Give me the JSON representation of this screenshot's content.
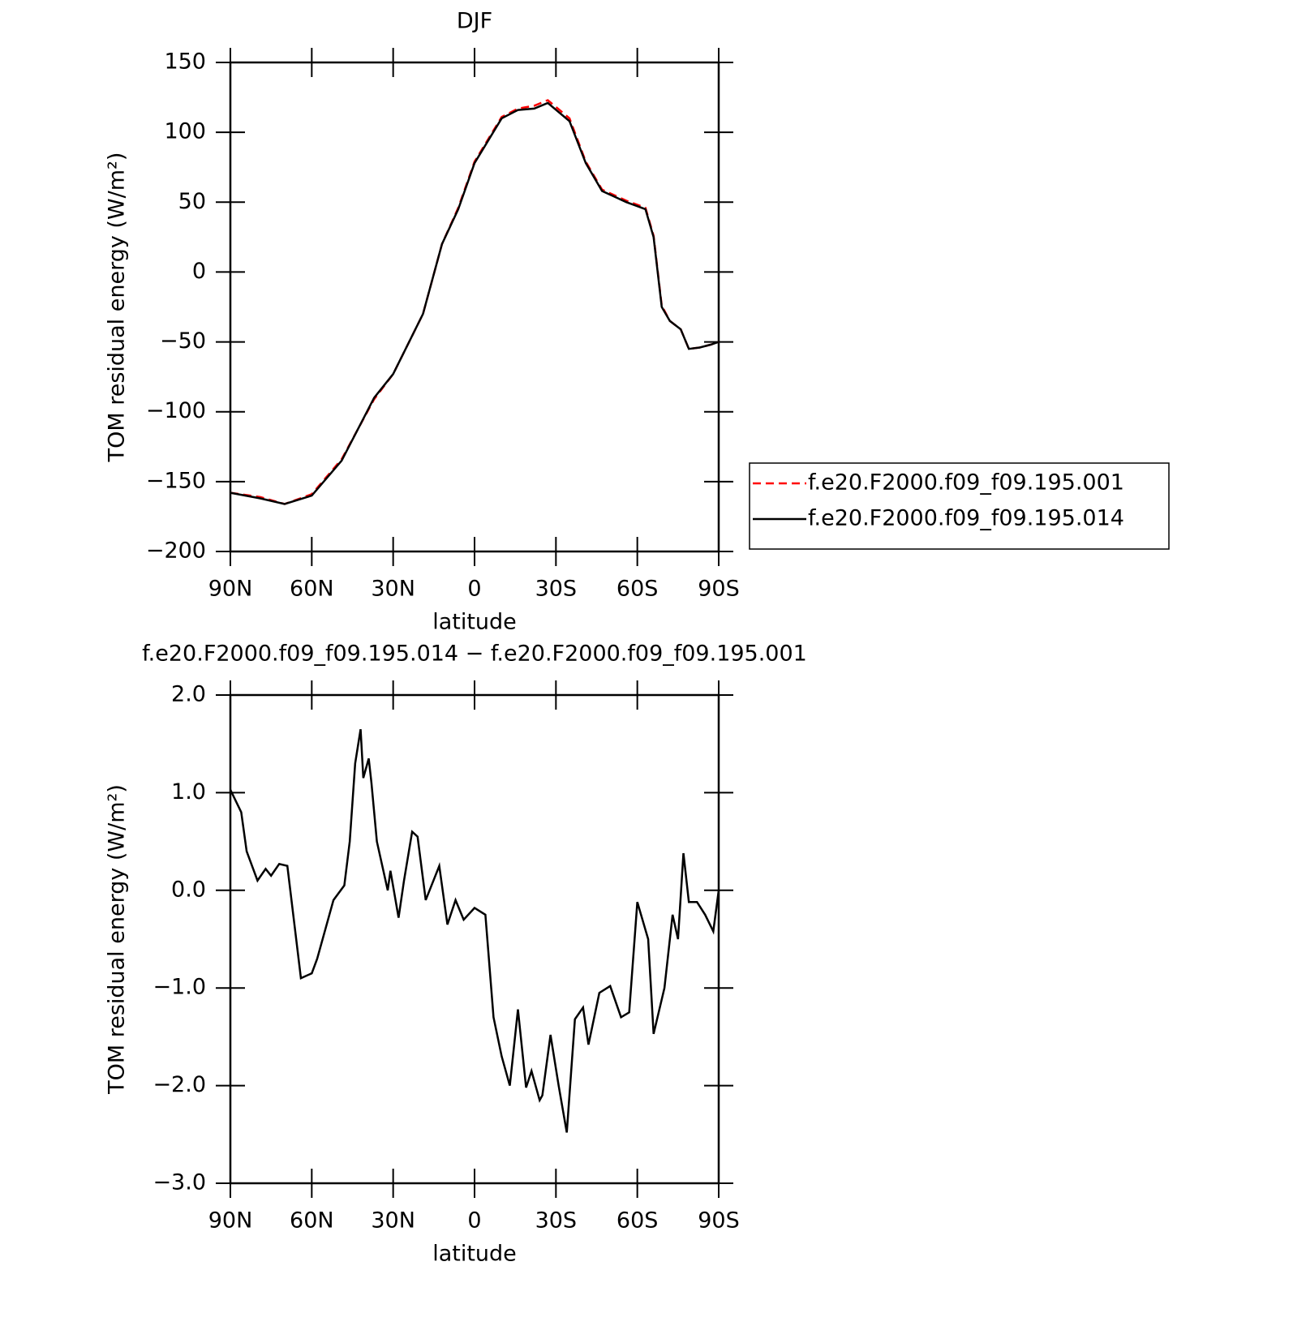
{
  "chart_data": [
    {
      "type": "line",
      "title": "DJF",
      "xlabel": "latitude",
      "ylabel": "TOM residual energy (W/m²)",
      "x": [
        90,
        79,
        70,
        60,
        49,
        37,
        30,
        19,
        12,
        6,
        0,
        -10,
        -16,
        -22,
        -27,
        -35,
        -41,
        -47,
        -56,
        -63,
        -66,
        -69,
        -72,
        -76,
        -79,
        -83,
        -87,
        -90
      ],
      "series": [
        {
          "name": "f.e20.F2000.f09_f09.195.001",
          "color": "#ff0000",
          "linestyle": "dashed",
          "values": [
            -158,
            -161,
            -166,
            -159,
            -134,
            -91,
            -73,
            -30,
            20,
            46,
            79,
            111,
            117,
            119,
            123,
            110,
            79,
            59,
            51,
            46,
            26,
            -24,
            -35,
            -41,
            -55,
            -54,
            -52,
            -50
          ]
        },
        {
          "name": "f.e20.F2000.f09_f09.195.014",
          "color": "#000000",
          "linestyle": "solid",
          "values": [
            -158,
            -162,
            -166,
            -160,
            -135,
            -90,
            -73,
            -30,
            20,
            45,
            78,
            110,
            116,
            117,
            121,
            108,
            78,
            58,
            50,
            45,
            25,
            -25,
            -35,
            -41,
            -55,
            -54,
            -52,
            -50
          ]
        }
      ],
      "xlim": [
        90,
        -90
      ],
      "xticks": [
        {
          "value": 90,
          "label": "90N"
        },
        {
          "value": 60,
          "label": "60N"
        },
        {
          "value": 30,
          "label": "30N"
        },
        0,
        {
          "value": -30,
          "label": "30S"
        },
        {
          "value": -60,
          "label": "60S"
        },
        {
          "value": -90,
          "label": "90S"
        }
      ],
      "ylim": [
        -200,
        150
      ],
      "yticks": [
        {
          "value": -200,
          "label": "−200"
        },
        {
          "value": -150,
          "label": "−150"
        },
        {
          "value": -100,
          "label": "−100"
        },
        {
          "value": -50,
          "label": "−50"
        },
        0,
        50,
        100,
        150
      ],
      "legend": "right"
    },
    {
      "type": "line",
      "title": "f.e20.F2000.f09_f09.195.014 − f.e20.F2000.f09_f09.195.001",
      "xlabel": "latitude",
      "ylabel": "TOM residual energy (W/m²)",
      "x": [
        90,
        86,
        84,
        80,
        77,
        75,
        72,
        69,
        64,
        60,
        58,
        52,
        48,
        46,
        44,
        42,
        41,
        39,
        38,
        36,
        32,
        31,
        28,
        26,
        23,
        21,
        18,
        13,
        10,
        7,
        4,
        0,
        -4,
        -7,
        -10,
        -13,
        -16,
        -19,
        -21,
        -24,
        -25,
        -28,
        -31,
        -34,
        -37,
        -40,
        -42,
        -46,
        -50,
        -54,
        -57,
        -60,
        -64,
        -66,
        -70,
        -73,
        -75,
        -77,
        -79,
        -82,
        -85,
        -88,
        -90
      ],
      "series": [
        {
          "name": null,
          "color": "#000000",
          "linestyle": "solid",
          "values": [
            1.03,
            0.8,
            0.4,
            0.1,
            0.22,
            0.15,
            0.27,
            0.25,
            -0.9,
            -0.85,
            -0.7,
            -0.1,
            0.05,
            0.5,
            1.3,
            1.65,
            1.15,
            1.35,
            1.1,
            0.5,
            0.0,
            0.2,
            -0.28,
            0.1,
            0.6,
            0.55,
            -0.1,
            0.25,
            -0.35,
            -0.1,
            -0.3,
            -0.18,
            -0.25,
            -1.3,
            -1.7,
            -2.0,
            -1.22,
            -2.02,
            -1.85,
            -2.15,
            -2.1,
            -1.48,
            -2.0,
            -2.48,
            -1.32,
            -1.2,
            -1.58,
            -1.05,
            -0.98,
            -1.3,
            -1.25,
            -0.12,
            -0.5,
            -1.47,
            -1.0,
            -0.25,
            -0.5,
            0.38,
            -0.12,
            -0.12,
            -0.25,
            -0.42,
            0.0
          ]
        }
      ],
      "xlim": [
        90,
        -90
      ],
      "xticks": [
        {
          "value": 90,
          "label": "90N"
        },
        {
          "value": 60,
          "label": "60N"
        },
        {
          "value": 30,
          "label": "30N"
        },
        0,
        {
          "value": -30,
          "label": "30S"
        },
        {
          "value": -60,
          "label": "60S"
        },
        {
          "value": -90,
          "label": "90S"
        }
      ],
      "ylim": [
        -3,
        2
      ],
      "yticks": [
        {
          "value": -3,
          "label": "−3.0"
        },
        {
          "value": -2,
          "label": "−2.0"
        },
        {
          "value": -1,
          "label": "−1.0"
        },
        {
          "value": 0,
          "label": "0.0"
        },
        {
          "value": 1,
          "label": "1.0"
        },
        {
          "value": 2,
          "label": "2.0"
        }
      ]
    }
  ]
}
